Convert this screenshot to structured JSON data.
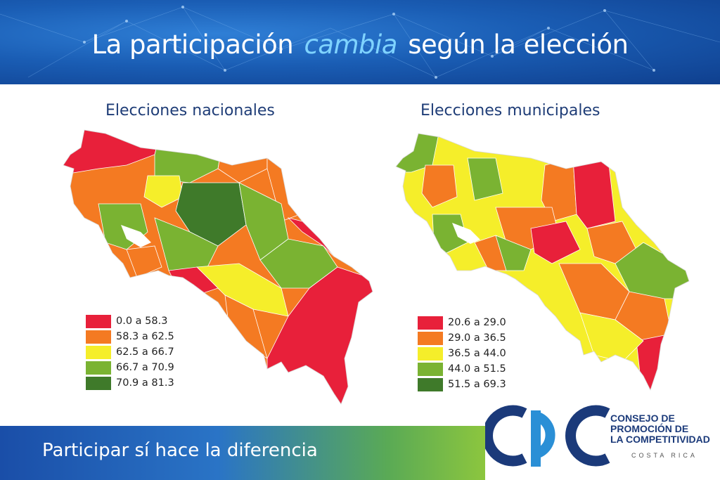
{
  "header": {
    "title_part1": "La participación",
    "title_highlight": "cambia",
    "title_part2": "según la elección"
  },
  "maps": [
    {
      "subtitle": "Elecciones nacionales",
      "legend": [
        {
          "label": "0.0 a 58.3",
          "color": "#e8203a"
        },
        {
          "label": "58.3 a 62.5",
          "color": "#f47a22"
        },
        {
          "label": "62.5 a 66.7",
          "color": "#f5ee2a"
        },
        {
          "label": "66.7 a 70.9",
          "color": "#7ab332"
        },
        {
          "label": "70.9 a 81.3",
          "color": "#3f7a2a"
        }
      ]
    },
    {
      "subtitle": "Elecciones municipales",
      "legend": [
        {
          "label": "20.6 a 29.0",
          "color": "#e8203a"
        },
        {
          "label": "29.0 a 36.5",
          "color": "#f47a22"
        },
        {
          "label": "36.5 a 44.0",
          "color": "#f5ee2a"
        },
        {
          "label": "44.0 a 51.5",
          "color": "#7ab332"
        },
        {
          "label": "51.5 a 69.3",
          "color": "#3f7a2a"
        }
      ]
    }
  ],
  "footer": {
    "text": "Participar sí hace la diferencia"
  },
  "logo": {
    "line1": "CONSEJO DE",
    "line2": "PROMOCIÓN DE",
    "line3": "LA COMPETITIVIDAD",
    "country": "COSTA RICA",
    "colors": {
      "blue": "#1b3a7a",
      "light_blue": "#2a8fd6"
    }
  }
}
